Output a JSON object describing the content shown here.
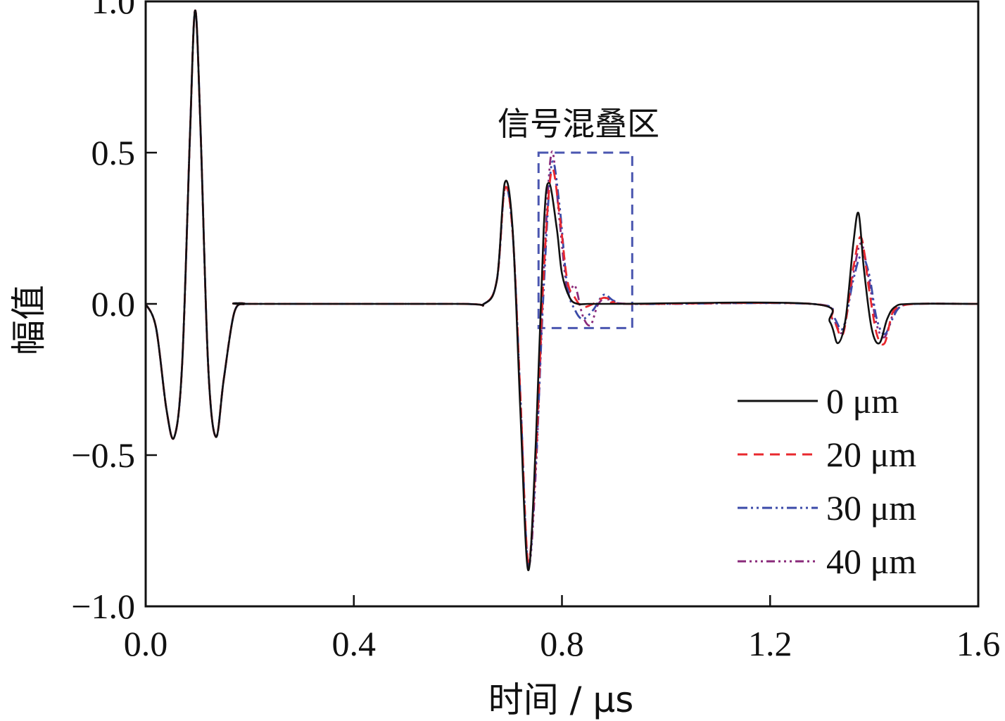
{
  "chart_data": {
    "type": "line",
    "xlabel": "时间 / μs",
    "ylabel": "幅值",
    "xlim": [
      0.0,
      1.6
    ],
    "ylim": [
      -1.0,
      1.0
    ],
    "x_ticks": [
      "0.0",
      "0.4",
      "0.8",
      "1.2",
      "1.6"
    ],
    "y_ticks": [
      "−1.0",
      "−0.5",
      "0.0",
      "0.5",
      "1.0"
    ],
    "grid": false,
    "legend_position": "bottom-right",
    "annotation": {
      "text": "信号混叠区",
      "box_x": [
        0.755,
        0.935
      ],
      "box_y": [
        -0.08,
        0.5
      ]
    },
    "series": [
      {
        "name": "0 μm",
        "color": "#111111",
        "dash": "solid",
        "x": [
          0.0,
          0.02,
          0.04,
          0.055,
          0.07,
          0.085,
          0.095,
          0.105,
          0.12,
          0.135,
          0.15,
          0.17,
          0.19,
          0.2,
          0.6,
          0.65,
          0.675,
          0.69,
          0.705,
          0.72,
          0.735,
          0.75,
          0.765,
          0.775,
          0.79,
          0.8,
          0.815,
          0.83,
          0.85,
          0.87,
          0.9,
          1.28,
          1.315,
          1.33,
          1.345,
          1.36,
          1.37,
          1.38,
          1.395,
          1.41,
          1.425,
          1.44,
          1.47,
          1.6
        ],
        "y": [
          0.0,
          -0.08,
          -0.35,
          -0.44,
          -0.2,
          0.55,
          0.97,
          0.6,
          -0.2,
          -0.44,
          -0.25,
          -0.03,
          0.0,
          0.0,
          0.0,
          0.0,
          0.08,
          0.4,
          0.25,
          -0.35,
          -0.88,
          -0.45,
          0.25,
          0.4,
          0.25,
          0.1,
          0.02,
          0.0,
          0.0,
          0.0,
          0.0,
          0.0,
          -0.06,
          -0.13,
          -0.05,
          0.2,
          0.3,
          0.12,
          -0.08,
          -0.13,
          -0.05,
          -0.01,
          0.0,
          0.0
        ]
      },
      {
        "name": "20 μm",
        "color": "#e8282e",
        "dash": "14,9",
        "x": [
          0.0,
          0.02,
          0.04,
          0.055,
          0.07,
          0.085,
          0.095,
          0.105,
          0.12,
          0.135,
          0.15,
          0.17,
          0.19,
          0.2,
          0.6,
          0.65,
          0.675,
          0.69,
          0.705,
          0.72,
          0.735,
          0.75,
          0.765,
          0.78,
          0.795,
          0.81,
          0.825,
          0.84,
          0.86,
          0.88,
          0.9,
          0.93,
          1.28,
          1.32,
          1.34,
          1.36,
          1.375,
          1.39,
          1.405,
          1.42,
          1.435,
          1.45,
          1.48,
          1.6
        ],
        "y": [
          0.0,
          -0.08,
          -0.35,
          -0.44,
          -0.2,
          0.55,
          0.97,
          0.6,
          -0.2,
          -0.44,
          -0.25,
          -0.03,
          0.0,
          0.0,
          0.0,
          0.0,
          0.08,
          0.38,
          0.24,
          -0.3,
          -0.85,
          -0.5,
          0.1,
          0.44,
          0.3,
          0.08,
          0.02,
          -0.01,
          0.0,
          0.02,
          0.01,
          0.0,
          0.0,
          -0.05,
          -0.1,
          0.12,
          0.22,
          0.05,
          -0.1,
          -0.13,
          -0.03,
          -0.01,
          0.0,
          0.0
        ]
      },
      {
        "name": "30 μm",
        "color": "#3a4aa8",
        "dash": "14,5,3,5,3,5",
        "x": [
          0.0,
          0.02,
          0.04,
          0.055,
          0.07,
          0.085,
          0.095,
          0.105,
          0.12,
          0.135,
          0.15,
          0.17,
          0.19,
          0.2,
          0.6,
          0.65,
          0.675,
          0.69,
          0.705,
          0.72,
          0.735,
          0.75,
          0.765,
          0.78,
          0.795,
          0.81,
          0.825,
          0.84,
          0.86,
          0.88,
          0.9,
          0.93,
          1.28,
          1.32,
          1.34,
          1.36,
          1.375,
          1.39,
          1.405,
          1.42,
          1.435,
          1.45,
          1.48,
          1.6
        ],
        "y": [
          0.0,
          -0.08,
          -0.35,
          -0.44,
          -0.2,
          0.55,
          0.97,
          0.6,
          -0.2,
          -0.44,
          -0.25,
          -0.03,
          0.0,
          0.0,
          0.0,
          0.0,
          0.08,
          0.38,
          0.24,
          -0.3,
          -0.86,
          -0.52,
          0.05,
          0.46,
          0.33,
          0.06,
          -0.02,
          -0.05,
          -0.02,
          0.03,
          0.01,
          0.0,
          0.0,
          -0.04,
          -0.08,
          0.08,
          0.16,
          0.1,
          -0.05,
          -0.1,
          -0.05,
          -0.01,
          0.0,
          0.0
        ]
      },
      {
        "name": "40 μm",
        "color": "#8a2a7a",
        "dash": "12,5,3,5,3,5,3,5",
        "x": [
          0.0,
          0.02,
          0.04,
          0.055,
          0.07,
          0.085,
          0.095,
          0.105,
          0.12,
          0.135,
          0.15,
          0.17,
          0.19,
          0.2,
          0.6,
          0.65,
          0.675,
          0.69,
          0.705,
          0.72,
          0.735,
          0.75,
          0.765,
          0.78,
          0.795,
          0.81,
          0.825,
          0.84,
          0.855,
          0.87,
          0.89,
          0.93,
          1.28,
          1.32,
          1.34,
          1.36,
          1.375,
          1.39,
          1.405,
          1.42,
          1.435,
          1.45,
          1.48,
          1.6
        ],
        "y": [
          0.0,
          -0.08,
          -0.35,
          -0.44,
          -0.2,
          0.55,
          0.97,
          0.6,
          -0.2,
          -0.44,
          -0.25,
          -0.03,
          0.0,
          0.0,
          0.0,
          0.0,
          0.08,
          0.38,
          0.24,
          -0.3,
          -0.86,
          -0.55,
          0.1,
          0.5,
          0.28,
          0.05,
          0.06,
          -0.04,
          -0.07,
          0.0,
          0.02,
          0.0,
          0.0,
          -0.05,
          -0.09,
          0.1,
          0.2,
          0.08,
          -0.07,
          -0.11,
          -0.04,
          -0.01,
          0.0,
          0.0
        ]
      }
    ]
  }
}
